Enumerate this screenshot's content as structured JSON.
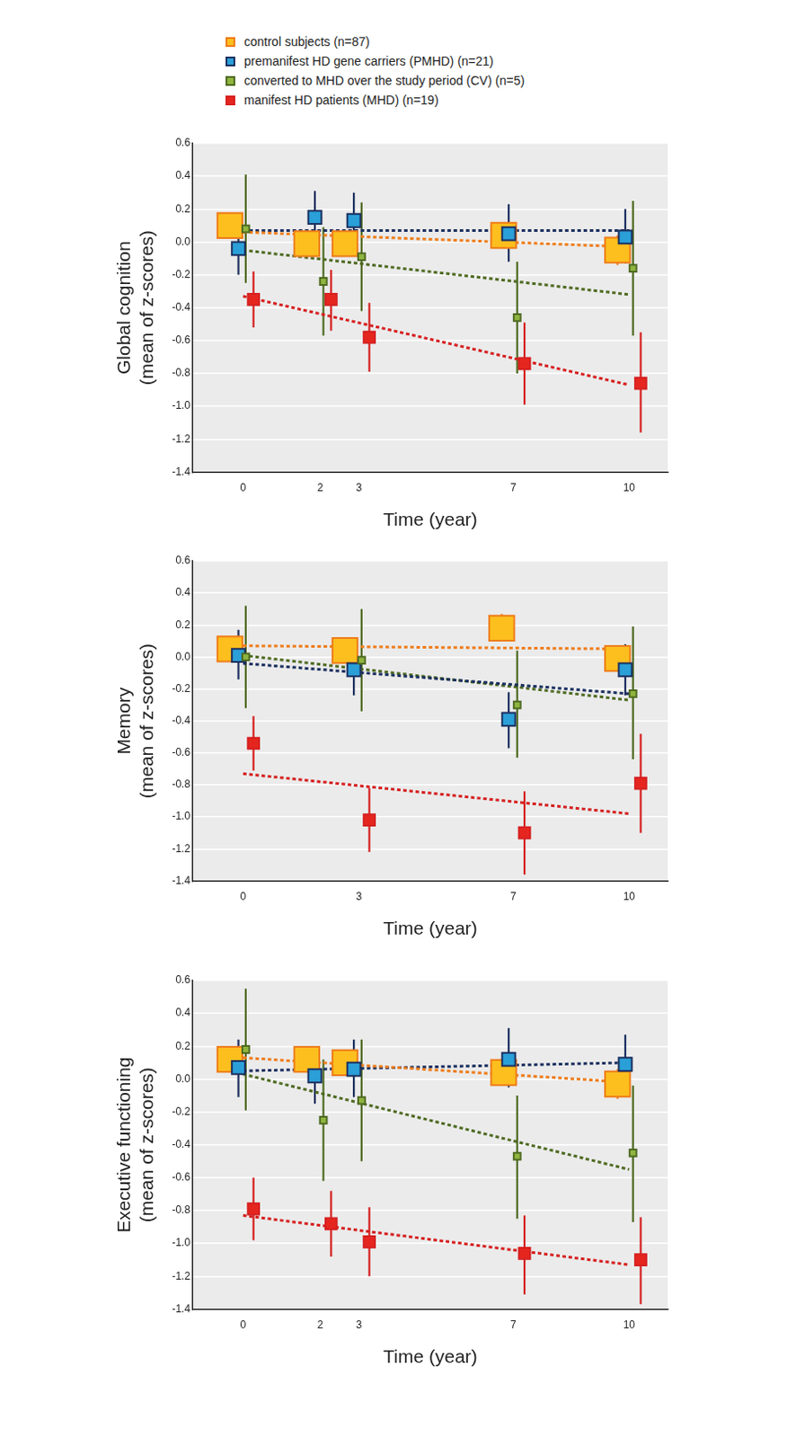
{
  "chart_data": [
    {
      "type": "scatter",
      "legend": "top left",
      "grid": true,
      "x_label": "Time (year)",
      "y_label": [
        "Global cognition",
        "(mean of z-scores)"
      ],
      "xlim": [
        -1.3,
        11.0
      ],
      "xticks": [
        0,
        2,
        3,
        7,
        10
      ],
      "ylim": [
        -1.4,
        0.6
      ],
      "yticks": [
        -1.4,
        -1.2,
        {
          "value": -1,
          "label": "-1.0"
        },
        -0.8,
        -0.6,
        -0.4,
        -0.2,
        {
          "value": 0,
          "label": "0.0"
        },
        0.2,
        0.4,
        0.6
      ],
      "series": [
        {
          "name": "control subjects (n=87)",
          "color": "#fcbf1e",
          "marker": "square",
          "line_style": "dashed",
          "x": [
            -0.34,
            1.65,
            2.64,
            6.75,
            9.7
          ],
          "values": [
            0.1,
            -0.01,
            -0.01,
            0.04,
            -0.05
          ],
          "error_lower": [
            0.06,
            -0.06,
            -0.06,
            -0.04,
            -0.14
          ],
          "error_upper": [
            0.14,
            0.04,
            0.04,
            0.12,
            0.04
          ],
          "trend": {
            "x": [
              0,
              10
            ],
            "values": [
              0.06,
              -0.03
            ]
          }
        },
        {
          "name": "premanifest HD gene carriers  (PMHD) (n=21)",
          "color": "#2a9fd8",
          "marker": "square",
          "line_style": "dashed",
          "x": [
            -0.12,
            1.86,
            2.87,
            6.88,
            9.9
          ],
          "values": [
            -0.04,
            0.15,
            0.13,
            0.05,
            0.03
          ],
          "error_lower": [
            -0.2,
            0.0,
            -0.02,
            -0.12,
            -0.13
          ],
          "error_upper": [
            0.12,
            0.31,
            0.3,
            0.23,
            0.2
          ],
          "trend": {
            "x": [
              0,
              10
            ],
            "values": [
              0.07,
              0.07
            ]
          }
        },
        {
          "name": "converted to MHD over the study period  (CV) (n=5)",
          "color": "#8fb53f",
          "marker": "square",
          "line_style": "dashed",
          "x": [
            0.07,
            2.08,
            3.07,
            7.1,
            10.1
          ],
          "values": [
            0.08,
            -0.24,
            -0.09,
            -0.46,
            -0.16
          ],
          "error_lower": [
            -0.25,
            -0.57,
            -0.42,
            -0.8,
            -0.57
          ],
          "error_upper": [
            0.41,
            0.09,
            0.24,
            -0.12,
            0.25
          ],
          "trend": {
            "x": [
              0,
              10
            ],
            "values": [
              -0.05,
              -0.32
            ]
          }
        },
        {
          "name": "manifest HD patients (MHD) (n=19)",
          "color": "#e5261f",
          "marker": "square",
          "line_style": "dashed",
          "x": [
            0.27,
            2.28,
            3.27,
            7.29,
            10.3
          ],
          "values": [
            -0.35,
            -0.35,
            -0.58,
            -0.74,
            -0.86
          ],
          "error_lower": [
            -0.52,
            -0.54,
            -0.79,
            -0.99,
            -1.16
          ],
          "error_upper": [
            -0.18,
            -0.17,
            -0.37,
            -0.49,
            -0.55
          ],
          "trend": {
            "x": [
              0,
              10
            ],
            "values": [
              -0.33,
              -0.87
            ]
          }
        }
      ]
    },
    {
      "type": "scatter",
      "legend": false,
      "grid": true,
      "x_label": "Time (year)",
      "y_label": [
        "Memory",
        "(mean of z-scores)"
      ],
      "xlim": [
        -1.3,
        11.0
      ],
      "xticks": [
        0,
        3,
        7,
        10
      ],
      "ylim": [
        -1.4,
        0.6
      ],
      "yticks": [
        -1.4,
        -1.2,
        {
          "value": -1,
          "label": "-1.0"
        },
        -0.8,
        -0.6,
        -0.4,
        -0.2,
        {
          "value": 0,
          "label": "0.0"
        },
        0.2,
        0.4,
        0.6
      ],
      "series": [
        {
          "name": "control subjects (n=87)",
          "color": "#fcbf1e",
          "marker": "square",
          "line_style": "dashed",
          "x": [
            -0.34,
            2.64,
            6.7,
            9.7
          ],
          "values": [
            0.05,
            0.04,
            0.18,
            -0.01
          ],
          "error_lower": [
            0.01,
            0.0,
            0.1,
            -0.07
          ],
          "error_upper": [
            0.09,
            0.08,
            0.27,
            0.05
          ],
          "trend": {
            "x": [
              0,
              10
            ],
            "values": [
              0.07,
              0.05
            ]
          }
        },
        {
          "name": "premanifest HD gene carriers  (PMHD) (n=21)",
          "color": "#2a9fd8",
          "marker": "square",
          "line_style": "dashed",
          "x": [
            -0.12,
            2.87,
            6.88,
            9.9
          ],
          "values": [
            0.01,
            -0.08,
            -0.39,
            -0.08
          ],
          "error_lower": [
            -0.14,
            -0.24,
            -0.57,
            -0.24
          ],
          "error_upper": [
            0.17,
            0.08,
            -0.22,
            0.08
          ],
          "trend": {
            "x": [
              0,
              10
            ],
            "values": [
              -0.04,
              -0.23
            ]
          }
        },
        {
          "name": "converted to MHD over the study period  (CV) (n=5)",
          "color": "#8fb53f",
          "marker": "square",
          "line_style": "dashed",
          "x": [
            0.07,
            3.07,
            7.1,
            10.1
          ],
          "values": [
            0.0,
            -0.02,
            -0.3,
            -0.23
          ],
          "error_lower": [
            -0.32,
            -0.34,
            -0.63,
            -0.64
          ],
          "error_upper": [
            0.32,
            0.3,
            0.04,
            0.19
          ],
          "trend": {
            "x": [
              0,
              10
            ],
            "values": [
              0.01,
              -0.27
            ]
          }
        },
        {
          "name": "manifest HD patients (MHD) (n=19)",
          "color": "#e5261f",
          "marker": "square",
          "line_style": "dashed",
          "x": [
            0.27,
            3.27,
            7.29,
            10.3
          ],
          "values": [
            -0.54,
            -1.02,
            -1.1,
            -0.79
          ],
          "error_lower": [
            -0.71,
            -1.22,
            -1.36,
            -1.1
          ],
          "error_upper": [
            -0.37,
            -0.82,
            -0.84,
            -0.48
          ],
          "trend": {
            "x": [
              0,
              10
            ],
            "values": [
              -0.73,
              -0.98
            ]
          }
        }
      ]
    },
    {
      "type": "scatter",
      "legend": false,
      "grid": true,
      "x_label": "Time (year)",
      "y_label": [
        "Executive functioning",
        "(mean of z-scores)"
      ],
      "xlim": [
        -1.3,
        11.0
      ],
      "xticks": [
        0,
        2,
        3,
        7,
        10
      ],
      "ylim": [
        -1.4,
        0.6
      ],
      "yticks": [
        -1.4,
        -1.2,
        {
          "value": -1,
          "label": "-1.0"
        },
        -0.8,
        -0.6,
        -0.4,
        -0.2,
        {
          "value": 0,
          "label": "0.0"
        },
        0.2,
        0.4,
        0.6
      ],
      "series": [
        {
          "name": "control subjects (n=87)",
          "color": "#fcbf1e",
          "marker": "square",
          "line_style": "dashed",
          "x": [
            -0.34,
            1.65,
            2.64,
            6.75,
            9.7
          ],
          "values": [
            0.12,
            0.12,
            0.1,
            0.04,
            -0.03
          ],
          "error_lower": [
            0.07,
            0.07,
            0.04,
            -0.03,
            -0.12
          ],
          "error_upper": [
            0.17,
            0.17,
            0.16,
            0.11,
            0.06
          ],
          "trend": {
            "x": [
              0,
              10
            ],
            "values": [
              0.13,
              -0.02
            ]
          }
        },
        {
          "name": "premanifest HD gene carriers  (PMHD) (n=21)",
          "color": "#2a9fd8",
          "marker": "square",
          "line_style": "dashed",
          "x": [
            -0.12,
            1.86,
            2.87,
            6.88,
            9.9
          ],
          "values": [
            0.07,
            0.02,
            0.06,
            0.12,
            0.09
          ],
          "error_lower": [
            -0.11,
            -0.15,
            -0.11,
            -0.05,
            -0.09
          ],
          "error_upper": [
            0.24,
            0.19,
            0.24,
            0.31,
            0.27
          ],
          "trend": {
            "x": [
              0,
              10
            ],
            "values": [
              0.05,
              0.1
            ]
          }
        },
        {
          "name": "converted to MHD over the study period  (CV) (n=5)",
          "color": "#8fb53f",
          "marker": "square",
          "line_style": "dashed",
          "x": [
            0.07,
            2.08,
            3.07,
            7.1,
            10.1
          ],
          "values": [
            0.18,
            -0.25,
            -0.13,
            -0.47,
            -0.45
          ],
          "error_lower": [
            -0.19,
            -0.62,
            -0.5,
            -0.85,
            -0.87
          ],
          "error_upper": [
            0.55,
            0.12,
            0.24,
            -0.1,
            -0.04
          ],
          "trend": {
            "x": [
              0,
              10
            ],
            "values": [
              0.03,
              -0.55
            ]
          }
        },
        {
          "name": "manifest HD patients (MHD) (n=19)",
          "color": "#e5261f",
          "marker": "square",
          "line_style": "dashed",
          "x": [
            0.27,
            2.28,
            3.27,
            7.29,
            10.3
          ],
          "values": [
            -0.79,
            -0.88,
            -0.99,
            -1.06,
            -1.1
          ],
          "error_lower": [
            -0.98,
            -1.08,
            -1.2,
            -1.31,
            -1.37
          ],
          "error_upper": [
            -0.6,
            -0.68,
            -0.78,
            -0.83,
            -0.84
          ],
          "trend": {
            "x": [
              0,
              10
            ],
            "values": [
              -0.83,
              -1.13
            ]
          }
        }
      ]
    }
  ]
}
